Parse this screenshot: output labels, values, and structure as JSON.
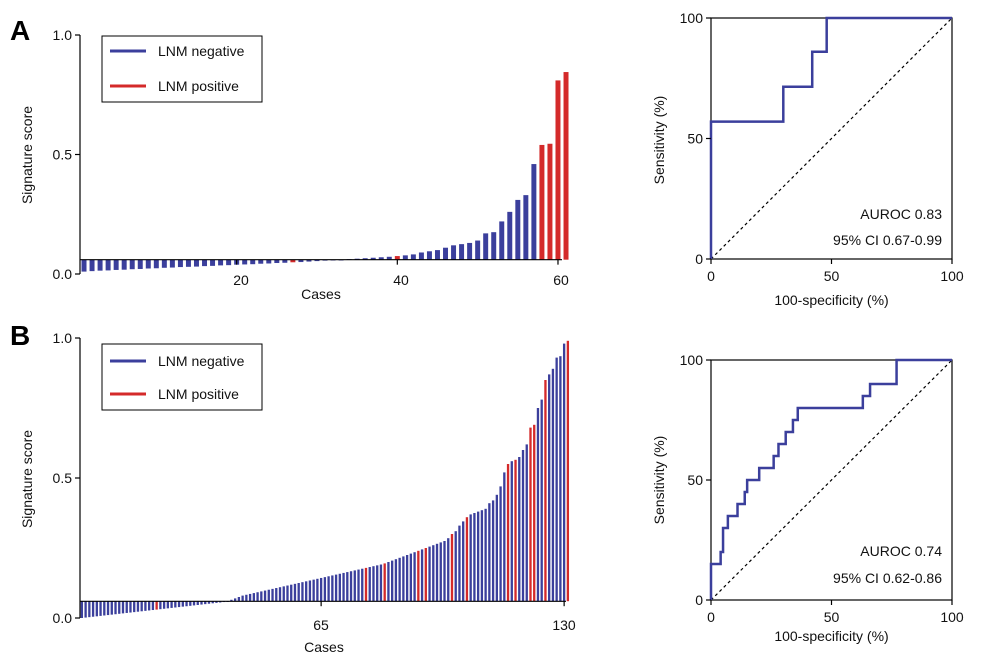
{
  "colors": {
    "negative": "#3b3f9c",
    "positive": "#d42a2a",
    "roc": "#3b3f9c",
    "axis": "#000000"
  },
  "panels": [
    {
      "letter": "A"
    },
    {
      "letter": "B"
    }
  ],
  "chart_data": [
    {
      "type": "bar",
      "panel": "A",
      "ylabel": "Signature score",
      "xlabel": "Cases",
      "baseline": 0.06,
      "ylim": [
        0.0,
        1.0
      ],
      "xlim": [
        0.5,
        60.5
      ],
      "yticks": [
        0.0,
        0.5,
        1.0
      ],
      "ytick_labels": [
        "0.0",
        "0.5",
        "1.0"
      ],
      "xticks": [
        20,
        40,
        60
      ],
      "xtick_labels": [
        "20",
        "40",
        "60"
      ],
      "legend": {
        "position": "top-left",
        "entries": [
          {
            "label": "LNM negative",
            "class": "neg"
          },
          {
            "label": "LNM positive",
            "class": "pos"
          }
        ]
      },
      "values": [
        0.01,
        0.012,
        0.014,
        0.015,
        0.017,
        0.018,
        0.02,
        0.021,
        0.023,
        0.024,
        0.026,
        0.027,
        0.029,
        0.03,
        0.031,
        0.033,
        0.034,
        0.036,
        0.037,
        0.039,
        0.04,
        0.041,
        0.043,
        0.044,
        0.046,
        0.047,
        0.049,
        0.05,
        0.052,
        0.054,
        0.056,
        0.058,
        0.059,
        0.062,
        0.064,
        0.066,
        0.068,
        0.07,
        0.072,
        0.075,
        0.078,
        0.082,
        0.09,
        0.095,
        0.1,
        0.11,
        0.12,
        0.125,
        0.13,
        0.14,
        0.17,
        0.175,
        0.22,
        0.26,
        0.31,
        0.33,
        0.46,
        0.54,
        0.545,
        0.81,
        0.845
      ],
      "status": [
        "neg",
        "neg",
        "neg",
        "neg",
        "neg",
        "neg",
        "neg",
        "neg",
        "neg",
        "neg",
        "neg",
        "neg",
        "neg",
        "neg",
        "neg",
        "neg",
        "neg",
        "neg",
        "neg",
        "neg",
        "neg",
        "neg",
        "neg",
        "neg",
        "neg",
        "neg",
        "pos",
        "neg",
        "neg",
        "neg",
        "neg",
        "neg",
        "neg",
        "neg",
        "neg",
        "neg",
        "neg",
        "neg",
        "neg",
        "pos",
        "neg",
        "neg",
        "neg",
        "neg",
        "neg",
        "neg",
        "neg",
        "neg",
        "neg",
        "neg",
        "neg",
        "neg",
        "neg",
        "neg",
        "neg",
        "neg",
        "neg",
        "pos",
        "pos",
        "pos",
        "pos"
      ]
    },
    {
      "type": "line",
      "panel": "A",
      "ylabel": "Sensitivity (%)",
      "xlabel": "100-specificity (%)",
      "xlim": [
        0,
        100
      ],
      "ylim": [
        0,
        100
      ],
      "ticks": [
        0,
        50,
        100
      ],
      "tick_labels": [
        "0",
        "50",
        "100"
      ],
      "series": [
        {
          "points": [
            [
              0,
              0
            ],
            [
              0,
              57
            ],
            [
              30,
              57
            ],
            [
              30,
              71.5
            ],
            [
              42,
              71.5
            ],
            [
              42,
              86
            ],
            [
              48,
              86
            ],
            [
              48,
              100
            ],
            [
              100,
              100
            ]
          ]
        }
      ],
      "reference_line": [
        [
          0,
          0
        ],
        [
          100,
          100
        ]
      ],
      "annotations": [
        "AUROC 0.83",
        "95% CI 0.67-0.99"
      ]
    },
    {
      "type": "bar",
      "panel": "B",
      "ylabel": "Signature score",
      "xlabel": "Cases",
      "baseline": 0.06,
      "ylim": [
        0.0,
        1.0
      ],
      "xlim": [
        0.5,
        130.5
      ],
      "yticks": [
        0.0,
        0.5,
        1.0
      ],
      "ytick_labels": [
        "0.0",
        "0.5",
        "1.0"
      ],
      "xticks": [
        65,
        130
      ],
      "xtick_labels": [
        "65",
        "130"
      ],
      "legend": {
        "position": "top-left",
        "entries": [
          {
            "label": "LNM negative",
            "class": "neg"
          },
          {
            "label": "LNM positive",
            "class": "pos"
          }
        ]
      },
      "values": [
        0.0,
        0.0015,
        0.003,
        0.0045,
        0.006,
        0.0075,
        0.009,
        0.0105,
        0.012,
        0.0135,
        0.015,
        0.0165,
        0.018,
        0.0195,
        0.021,
        0.0225,
        0.024,
        0.0255,
        0.027,
        0.0285,
        0.03,
        0.0315,
        0.033,
        0.0345,
        0.036,
        0.0375,
        0.039,
        0.0405,
        0.042,
        0.0435,
        0.045,
        0.0465,
        0.048,
        0.0495,
        0.051,
        0.0525,
        0.054,
        0.0555,
        0.057,
        0.0585,
        0.065,
        0.07,
        0.075,
        0.08,
        0.083,
        0.086,
        0.089,
        0.092,
        0.095,
        0.098,
        0.101,
        0.104,
        0.107,
        0.11,
        0.113,
        0.116,
        0.119,
        0.122,
        0.125,
        0.128,
        0.131,
        0.134,
        0.137,
        0.14,
        0.143,
        0.146,
        0.149,
        0.152,
        0.155,
        0.158,
        0.161,
        0.164,
        0.167,
        0.17,
        0.173,
        0.176,
        0.179,
        0.182,
        0.185,
        0.188,
        0.191,
        0.195,
        0.2,
        0.205,
        0.21,
        0.215,
        0.22,
        0.225,
        0.23,
        0.235,
        0.24,
        0.245,
        0.25,
        0.255,
        0.26,
        0.265,
        0.27,
        0.275,
        0.285,
        0.3,
        0.31,
        0.33,
        0.345,
        0.36,
        0.37,
        0.375,
        0.38,
        0.385,
        0.39,
        0.41,
        0.42,
        0.44,
        0.47,
        0.52,
        0.55,
        0.56,
        0.565,
        0.575,
        0.6,
        0.62,
        0.68,
        0.69,
        0.75,
        0.78,
        0.85,
        0.87,
        0.89,
        0.93,
        0.935,
        0.98,
        0.99
      ],
      "status": [
        "neg",
        "neg",
        "neg",
        "neg",
        "neg",
        "neg",
        "neg",
        "neg",
        "neg",
        "neg",
        "neg",
        "neg",
        "neg",
        "neg",
        "neg",
        "neg",
        "neg",
        "neg",
        "neg",
        "neg",
        "pos",
        "neg",
        "neg",
        "neg",
        "neg",
        "neg",
        "neg",
        "neg",
        "neg",
        "neg",
        "neg",
        "neg",
        "neg",
        "neg",
        "neg",
        "neg",
        "neg",
        "neg",
        "neg",
        "neg",
        "neg",
        "neg",
        "neg",
        "neg",
        "neg",
        "neg",
        "neg",
        "neg",
        "neg",
        "neg",
        "neg",
        "neg",
        "neg",
        "neg",
        "neg",
        "neg",
        "neg",
        "neg",
        "neg",
        "neg",
        "neg",
        "neg",
        "neg",
        "neg",
        "neg",
        "neg",
        "neg",
        "neg",
        "neg",
        "neg",
        "neg",
        "neg",
        "neg",
        "neg",
        "neg",
        "neg",
        "pos",
        "neg",
        "neg",
        "neg",
        "neg",
        "pos",
        "neg",
        "neg",
        "neg",
        "neg",
        "neg",
        "neg",
        "neg",
        "neg",
        "pos",
        "neg",
        "pos",
        "neg",
        "neg",
        "neg",
        "neg",
        "neg",
        "neg",
        "pos",
        "neg",
        "neg",
        "neg",
        "pos",
        "neg",
        "neg",
        "neg",
        "neg",
        "neg",
        "neg",
        "neg",
        "neg",
        "neg",
        "neg",
        "pos",
        "neg",
        "pos",
        "neg",
        "neg",
        "neg",
        "pos",
        "pos",
        "neg",
        "neg",
        "pos",
        "neg",
        "neg",
        "neg",
        "neg",
        "neg",
        "pos",
        "pos"
      ]
    },
    {
      "type": "line",
      "panel": "B",
      "ylabel": "Sensitivity (%)",
      "xlabel": "100-specificity (%)",
      "xlim": [
        0,
        100
      ],
      "ylim": [
        0,
        100
      ],
      "ticks": [
        0,
        50,
        100
      ],
      "tick_labels": [
        "0",
        "50",
        "100"
      ],
      "series": [
        {
          "points": [
            [
              0,
              0
            ],
            [
              0,
              15
            ],
            [
              4,
              15
            ],
            [
              4,
              20
            ],
            [
              5,
              20
            ],
            [
              5,
              30
            ],
            [
              7,
              30
            ],
            [
              7,
              35
            ],
            [
              11,
              35
            ],
            [
              11,
              40
            ],
            [
              14,
              40
            ],
            [
              14,
              45
            ],
            [
              15,
              45
            ],
            [
              15,
              50
            ],
            [
              20,
              50
            ],
            [
              20,
              55
            ],
            [
              26,
              55
            ],
            [
              26,
              60
            ],
            [
              28,
              60
            ],
            [
              28,
              65
            ],
            [
              31,
              65
            ],
            [
              31,
              70
            ],
            [
              34,
              70
            ],
            [
              34,
              75
            ],
            [
              36,
              75
            ],
            [
              36,
              80
            ],
            [
              63,
              80
            ],
            [
              63,
              85
            ],
            [
              66,
              85
            ],
            [
              66,
              90
            ],
            [
              77,
              90
            ],
            [
              77,
              100
            ],
            [
              100,
              100
            ]
          ]
        }
      ],
      "reference_line": [
        [
          0,
          0
        ],
        [
          100,
          100
        ]
      ],
      "annotations": [
        "AUROC 0.74",
        "95% CI 0.62-0.86"
      ]
    }
  ]
}
